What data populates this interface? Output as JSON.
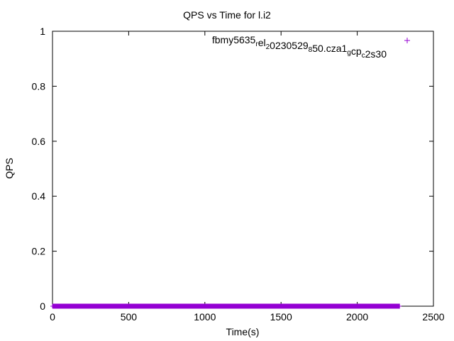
{
  "chart_data": {
    "type": "scatter",
    "title": "QPS vs Time for l.i2",
    "xlabel": "Time(s)",
    "ylabel": "QPS",
    "xlim": [
      0,
      2500
    ],
    "ylim": [
      0,
      1
    ],
    "xticks": [
      "0",
      "500",
      "1000",
      "1500",
      "2000",
      "2500"
    ],
    "yticks": [
      "0",
      "0.2",
      "0.4",
      "0.6",
      "0.8",
      "1"
    ],
    "grid": false,
    "legend_position": "top-right",
    "series": [
      {
        "name": "fbmy5635_rel_20230529_850.cza1_gcp_c2s30",
        "color": "#9400d3",
        "marker": "+",
        "x_range": [
          0,
          2280
        ],
        "y_value": 0
      }
    ]
  },
  "legend": {
    "parts": [
      {
        "text": "fbmy5635",
        "sub": false
      },
      {
        "text": "r",
        "sub": true
      },
      {
        "text": "el",
        "sub": false
      },
      {
        "text": "2",
        "sub": true
      },
      {
        "text": "0230529",
        "sub": false
      },
      {
        "text": "8",
        "sub": true
      },
      {
        "text": "50.cza1",
        "sub": false
      },
      {
        "text": "g",
        "sub": true
      },
      {
        "text": "cp",
        "sub": false
      },
      {
        "text": "c",
        "sub": true
      },
      {
        "text": "2s30",
        "sub": false
      }
    ]
  }
}
